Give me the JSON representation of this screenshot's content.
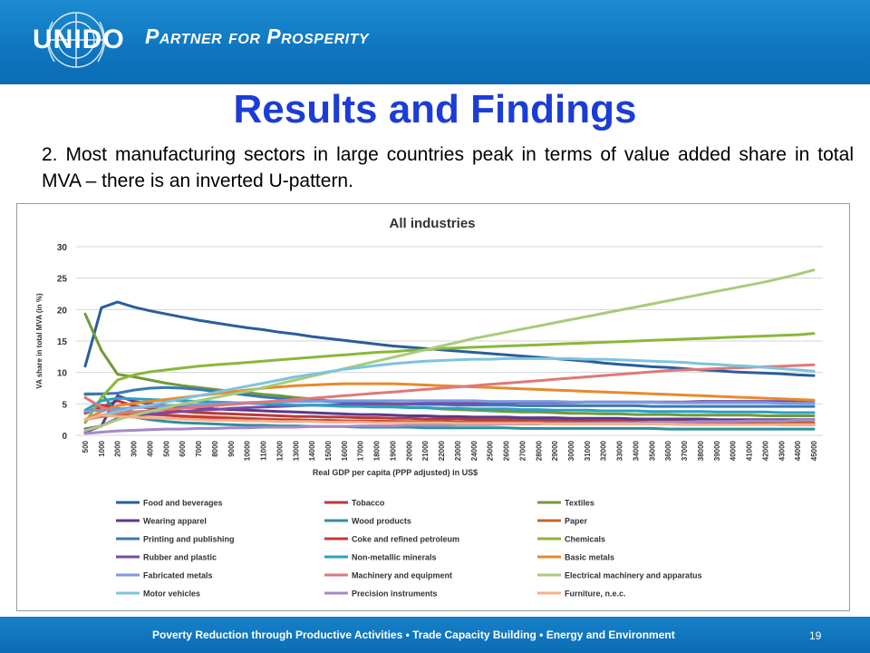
{
  "header": {
    "logo_text": "UNIDO",
    "tagline": "Partner for Prosperity"
  },
  "slide": {
    "title": "Results and Findings",
    "intro": "2. Most manufacturing sectors in large countries peak in terms of value added share in total MVA – there is an inverted U-pattern."
  },
  "footer": {
    "text": "Poverty Reduction through Productive Activities  •  Trade Capacity Building  •  Energy and Environment",
    "page_number": "19"
  },
  "chart_data": {
    "type": "line",
    "title": "All industries",
    "xlabel": "Real GDP per capita (PPP adjusted) in US$",
    "ylabel": "VA share in total MVA (in %)",
    "ylim": [
      0,
      30
    ],
    "yticks": [
      0,
      5,
      10,
      15,
      20,
      25,
      30
    ],
    "grid": "horizontal",
    "legend_position": "bottom",
    "x": [
      "500",
      "1000",
      "2000",
      "3000",
      "4000",
      "5000",
      "6000",
      "7000",
      "8000",
      "9000",
      "10000",
      "11000",
      "12000",
      "13000",
      "14000",
      "15000",
      "16000",
      "17000",
      "18000",
      "19000",
      "20000",
      "21000",
      "22000",
      "23000",
      "24000",
      "25000",
      "26000",
      "27000",
      "28000",
      "29000",
      "30000",
      "31000",
      "32000",
      "33000",
      "34000",
      "35000",
      "36000",
      "37000",
      "38000",
      "39000",
      "40000",
      "41000",
      "42000",
      "43000",
      "44000",
      "45000"
    ],
    "series": [
      {
        "name": "Food and beverages",
        "color": "#2a5d9c",
        "values": [
          11,
          20.3,
          21.2,
          20.4,
          19.8,
          19.3,
          18.8,
          18.3,
          17.9,
          17.5,
          17.1,
          16.8,
          16.4,
          16.1,
          15.7,
          15.4,
          15.1,
          14.8,
          14.5,
          14.2,
          14,
          13.8,
          13.6,
          13.4,
          13.2,
          13,
          12.8,
          12.6,
          12.4,
          12.2,
          12,
          11.8,
          11.5,
          11.3,
          11.1,
          10.9,
          10.8,
          10.6,
          10.4,
          10.3,
          10.1,
          10,
          9.9,
          9.8,
          9.6,
          9.5
        ]
      },
      {
        "name": "Tobacco",
        "color": "#b83a3a",
        "values": [
          3.5,
          4.5,
          5.5,
          4.7,
          4.3,
          4,
          3.8,
          3.6,
          3.5,
          3.4,
          3.3,
          3.2,
          3.1,
          3,
          3,
          2.9,
          2.9,
          2.8,
          2.8,
          2.7,
          2.7,
          2.6,
          2.6,
          2.6,
          2.5,
          2.5,
          2.5,
          2.4,
          2.4,
          2.4,
          2.4,
          2.3,
          2.3,
          2.3,
          2.3,
          2.2,
          2.2,
          2.2,
          2.2,
          2.2,
          2.1,
          2.1,
          2.1,
          2.1,
          2.1,
          2
        ]
      },
      {
        "name": "Textiles",
        "color": "#6f9a3a",
        "values": [
          19.3,
          13.5,
          9.7,
          9.3,
          8.8,
          8.3,
          7.9,
          7.6,
          7.3,
          7,
          6.8,
          6.5,
          6.3,
          6,
          5.8,
          5.5,
          5.3,
          5.1,
          4.9,
          4.7,
          4.5,
          4.4,
          4.2,
          4.1,
          4,
          3.9,
          3.8,
          3.7,
          3.7,
          3.6,
          3.5,
          3.5,
          3.4,
          3.4,
          3.3,
          3.3,
          3.3,
          3.2,
          3.2,
          3.2,
          3.2,
          3.2,
          3.1,
          3.1,
          3.1,
          3.1
        ]
      },
      {
        "name": "Wearing apparel",
        "color": "#5a3a8c",
        "values": [
          1,
          1.5,
          6.3,
          5.4,
          5,
          4.7,
          4.5,
          4.4,
          4.2,
          4.1,
          4,
          3.9,
          3.8,
          3.7,
          3.6,
          3.5,
          3.4,
          3.3,
          3.3,
          3.2,
          3.1,
          3.1,
          3,
          3,
          2.9,
          2.9,
          2.9,
          2.8,
          2.8,
          2.8,
          2.7,
          2.7,
          2.7,
          2.7,
          2.6,
          2.6,
          2.6,
          2.6,
          2.6,
          2.5,
          2.5,
          2.5,
          2.5,
          2.5,
          2.5,
          2.5
        ]
      },
      {
        "name": "Wood products",
        "color": "#2f8f9e",
        "values": [
          6.6,
          6.6,
          3.5,
          2.9,
          2.5,
          2.2,
          2,
          1.9,
          1.8,
          1.7,
          1.6,
          1.6,
          1.5,
          1.5,
          1.4,
          1.4,
          1.4,
          1.3,
          1.3,
          1.3,
          1.3,
          1.2,
          1.2,
          1.2,
          1.2,
          1.2,
          1.2,
          1.1,
          1.1,
          1.1,
          1.1,
          1.1,
          1.1,
          1.1,
          1.1,
          1.1,
          1,
          1,
          1,
          1,
          1,
          1,
          1,
          1,
          1,
          1
        ]
      },
      {
        "name": "Paper",
        "color": "#c0672a",
        "values": [
          2.5,
          3,
          3.2,
          3.3,
          3.3,
          3.2,
          3.1,
          3,
          2.9,
          2.8,
          2.7,
          2.6,
          2.5,
          2.5,
          2.4,
          2.4,
          2.3,
          2.3,
          2.3,
          2.2,
          2.2,
          2.2,
          2.2,
          2.1,
          2.1,
          2.1,
          2.1,
          2.1,
          2.1,
          2,
          2,
          2,
          2,
          2,
          2,
          2,
          2,
          2,
          2,
          1.9,
          1.9,
          1.9,
          1.9,
          1.9,
          1.9,
          1.9
        ]
      },
      {
        "name": "Printing and publishing",
        "color": "#3878b8",
        "values": [
          6.5,
          6.6,
          6.7,
          7.2,
          7.5,
          7.6,
          7.5,
          7.3,
          7,
          6.7,
          6.4,
          6.1,
          5.9,
          5.7,
          5.5,
          5.4,
          5.3,
          5.2,
          5.1,
          5,
          5,
          4.9,
          4.9,
          4.8,
          4.8,
          4.8,
          4.8,
          4.7,
          4.7,
          4.7,
          4.7,
          4.7,
          4.7,
          4.7,
          4.7,
          4.6,
          4.6,
          4.6,
          4.6,
          4.6,
          4.6,
          4.6,
          4.6,
          4.6,
          4.6,
          4.6
        ]
      },
      {
        "name": "Coke and refined petroleum",
        "color": "#c83a38",
        "values": [
          3.5,
          4.8,
          4.3,
          3.7,
          3.4,
          3.2,
          3,
          2.9,
          2.8,
          2.7,
          2.6,
          2.5,
          2.5,
          2.4,
          2.4,
          2.3,
          2.3,
          2.2,
          2.2,
          2.2,
          2.1,
          2.1,
          2.1,
          2,
          2,
          2,
          2,
          2,
          1.9,
          1.9,
          1.9,
          1.9,
          1.9,
          1.9,
          1.8,
          1.8,
          1.8,
          1.8,
          1.8,
          1.8,
          1.8,
          1.8,
          1.8,
          1.7,
          1.7,
          1.7
        ]
      },
      {
        "name": "Chemicals",
        "color": "#89b83a",
        "values": [
          2,
          6,
          8.8,
          9.6,
          10.1,
          10.4,
          10.7,
          11,
          11.2,
          11.4,
          11.6,
          11.8,
          12,
          12.2,
          12.4,
          12.6,
          12.8,
          13,
          13.2,
          13.3,
          13.5,
          13.6,
          13.8,
          13.9,
          14,
          14.1,
          14.2,
          14.3,
          14.4,
          14.5,
          14.6,
          14.7,
          14.8,
          14.9,
          15,
          15.1,
          15.2,
          15.3,
          15.4,
          15.5,
          15.6,
          15.7,
          15.8,
          15.9,
          16,
          16.2
        ]
      },
      {
        "name": "Rubber and plastic",
        "color": "#7a4aa8",
        "values": [
          0.5,
          1.5,
          2.7,
          3.1,
          3.4,
          3.6,
          3.8,
          4,
          4.1,
          4.3,
          4.4,
          4.5,
          4.6,
          4.7,
          4.8,
          4.8,
          4.9,
          4.9,
          5,
          5,
          5,
          5.1,
          5.1,
          5.1,
          5.1,
          5.2,
          5.2,
          5.2,
          5.2,
          5.2,
          5.2,
          5.3,
          5.3,
          5.3,
          5.3,
          5.3,
          5.3,
          5.3,
          5.4,
          5.4,
          5.4,
          5.4,
          5.4,
          5.4,
          5.4,
          5.5
        ]
      },
      {
        "name": "Non-metallic minerals",
        "color": "#2aa0c4",
        "values": [
          4,
          5.5,
          5.9,
          5.8,
          5.7,
          5.6,
          5.5,
          5.4,
          5.3,
          5.2,
          5.1,
          5,
          4.9,
          4.8,
          4.8,
          4.7,
          4.6,
          4.6,
          4.5,
          4.5,
          4.4,
          4.4,
          4.3,
          4.3,
          4.2,
          4.2,
          4.2,
          4.1,
          4.1,
          4,
          4,
          4,
          3.9,
          3.9,
          3.9,
          3.8,
          3.8,
          3.8,
          3.8,
          3.7,
          3.7,
          3.7,
          3.7,
          3.6,
          3.6,
          3.6
        ]
      },
      {
        "name": "Basic metals",
        "color": "#e8892c",
        "values": [
          2.5,
          3.8,
          4.7,
          5.1,
          5.4,
          5.7,
          6,
          6.3,
          6.6,
          6.9,
          7.2,
          7.5,
          7.7,
          7.9,
          8,
          8.1,
          8.2,
          8.2,
          8.2,
          8.2,
          8.1,
          8,
          7.9,
          7.8,
          7.7,
          7.6,
          7.5,
          7.4,
          7.3,
          7.2,
          7.1,
          7,
          6.9,
          6.8,
          6.7,
          6.6,
          6.5,
          6.4,
          6.3,
          6.2,
          6.1,
          6,
          5.9,
          5.8,
          5.7,
          5.6
        ]
      },
      {
        "name": "Fabricated metals",
        "color": "#7a9ae0",
        "values": [
          3.8,
          4,
          4.2,
          4.4,
          4.5,
          4.7,
          4.8,
          4.9,
          5,
          5.1,
          5.2,
          5.3,
          5.3,
          5.4,
          5.4,
          5.5,
          5.5,
          5.5,
          5.5,
          5.5,
          5.5,
          5.5,
          5.5,
          5.5,
          5.5,
          5.4,
          5.4,
          5.4,
          5.4,
          5.4,
          5.3,
          5.3,
          5.3,
          5.3,
          5.3,
          5.3,
          5.2,
          5.2,
          5.2,
          5.2,
          5.2,
          5.2,
          5.2,
          5.1,
          5.1,
          5.1
        ]
      },
      {
        "name": "Machinery and equipment",
        "color": "#e07878",
        "values": [
          6,
          4.5,
          3.5,
          3.7,
          3.9,
          4.1,
          4.3,
          4.5,
          4.7,
          4.9,
          5.1,
          5.3,
          5.5,
          5.7,
          5.9,
          6.1,
          6.3,
          6.5,
          6.7,
          6.9,
          7.1,
          7.3,
          7.5,
          7.7,
          7.9,
          8.1,
          8.3,
          8.5,
          8.7,
          8.9,
          9.1,
          9.3,
          9.5,
          9.7,
          9.9,
          10.1,
          10.3,
          10.4,
          10.5,
          10.6,
          10.7,
          10.8,
          10.9,
          11,
          11.1,
          11.2
        ]
      },
      {
        "name": "Electrical machinery and apparatus",
        "color": "#a8cc7a",
        "values": [
          0.8,
          1.5,
          2.5,
          3.2,
          3.8,
          4.4,
          5,
          5.5,
          6,
          6.5,
          7,
          7.6,
          8.2,
          8.8,
          9.4,
          10,
          10.6,
          11.2,
          11.8,
          12.4,
          13,
          13.6,
          14.2,
          14.8,
          15.4,
          15.9,
          16.4,
          16.9,
          17.4,
          17.9,
          18.4,
          18.9,
          19.4,
          19.9,
          20.4,
          20.9,
          21.4,
          21.9,
          22.4,
          22.9,
          23.4,
          23.9,
          24.4,
          25,
          25.6,
          26.3
        ]
      },
      {
        "name": "Motor vehicles",
        "color": "#7ec4dc",
        "values": [
          2.5,
          3.2,
          3.8,
          4.3,
          4.8,
          5.3,
          5.8,
          6.3,
          6.8,
          7.3,
          7.8,
          8.3,
          8.8,
          9.3,
          9.7,
          10.1,
          10.5,
          10.8,
          11.1,
          11.4,
          11.6,
          11.8,
          11.9,
          12,
          12.1,
          12.1,
          12.2,
          12.2,
          12.2,
          12.2,
          12.2,
          12.1,
          12.1,
          12,
          11.9,
          11.8,
          11.7,
          11.6,
          11.4,
          11.3,
          11.1,
          11,
          10.8,
          10.6,
          10.4,
          10.2
        ]
      },
      {
        "name": "Precision instruments",
        "color": "#a48ac8",
        "values": [
          0.3,
          0.5,
          0.7,
          0.8,
          0.9,
          1,
          1,
          1.1,
          1.1,
          1.2,
          1.2,
          1.3,
          1.3,
          1.3,
          1.4,
          1.4,
          1.4,
          1.5,
          1.5,
          1.5,
          1.6,
          1.6,
          1.6,
          1.7,
          1.7,
          1.7,
          1.8,
          1.8,
          1.8,
          1.9,
          1.9,
          1.9,
          2,
          2,
          2,
          2.1,
          2.1,
          2.1,
          2.2,
          2.2,
          2.2,
          2.3,
          2.3,
          2.3,
          2.4,
          2.4
        ]
      },
      {
        "name": "Furniture, n.e.c.",
        "color": "#f4b088",
        "values": [
          2.5,
          3.2,
          3,
          2.9,
          2.8,
          2.7,
          2.6,
          2.5,
          2.4,
          2.4,
          2.3,
          2.3,
          2.2,
          2.2,
          2.2,
          2.1,
          2.1,
          2.1,
          2,
          2,
          2,
          2,
          2,
          1.9,
          1.9,
          1.9,
          1.9,
          1.9,
          1.9,
          1.8,
          1.8,
          1.8,
          1.8,
          1.8,
          1.8,
          1.8,
          1.8,
          1.7,
          1.7,
          1.7,
          1.7,
          1.7,
          1.7,
          1.7,
          1.7,
          1.7
        ]
      }
    ]
  }
}
